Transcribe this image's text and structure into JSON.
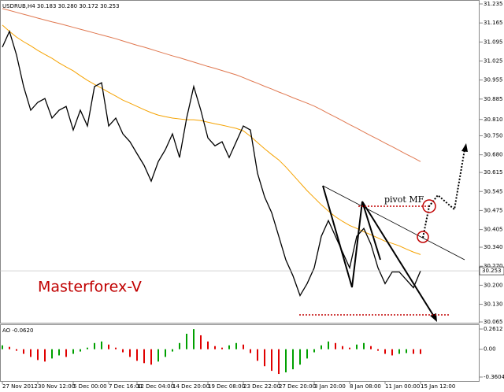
{
  "chart_data": [
    {
      "type": "line",
      "title": "USDRUB,H4 30.183 30.280 30.172 30.253",
      "annotations": [
        "Masterforex-V",
        "pivot MF"
      ],
      "last_price": 30.253,
      "categories": [
        "27 Nov 2012",
        null,
        null,
        null,
        null,
        "30 Nov 12:00",
        null,
        null,
        null,
        null,
        "5 Dec 00:00",
        null,
        null,
        null,
        null,
        "7 Dec 16:00",
        null,
        null,
        null,
        "12 Dec 04:00",
        null,
        null,
        null,
        null,
        "14 Dec 20:00",
        null,
        null,
        null,
        null,
        "19 Dec 08:00",
        null,
        null,
        null,
        null,
        "23 Dec 22:00",
        null,
        null,
        null,
        null,
        "27 Dec 20:00",
        null,
        null,
        null,
        null,
        "3 Jan 20:00",
        null,
        null,
        null,
        null,
        "8 Jan 08:00",
        null,
        null,
        null,
        null,
        "11 Jan 00:00",
        null,
        null,
        null,
        null,
        "15 Jan 12:00"
      ],
      "series": [
        {
          "color": "#000000",
          "values": [
            31.076,
            31.134,
            31.047,
            30.931,
            30.844,
            30.873,
            30.887,
            30.815,
            30.844,
            30.858,
            30.771,
            30.844,
            30.786,
            30.931,
            30.945,
            30.786,
            30.815,
            30.757,
            30.728,
            30.684,
            30.641,
            30.583,
            30.655,
            30.699,
            30.757,
            30.67,
            30.815,
            30.931,
            30.844,
            30.742,
            30.713,
            30.728,
            30.67,
            30.728,
            30.786,
            30.771,
            30.612,
            30.525,
            30.467,
            30.38,
            30.293,
            30.235,
            30.162,
            30.206,
            30.264,
            30.38,
            30.438,
            30.38,
            30.322,
            30.264,
            30.38,
            30.409,
            30.351,
            30.264,
            30.206,
            30.249,
            30.249,
            30.22,
            30.191,
            30.253
          ]
        },
        {
          "color": "#f5a200",
          "values": [
            31.157,
            31.134,
            31.113,
            31.096,
            31.081,
            31.064,
            31.049,
            31.035,
            31.018,
            31.003,
            30.989,
            30.971,
            30.954,
            30.939,
            30.925,
            30.91,
            30.896,
            30.881,
            30.87,
            30.858,
            30.846,
            30.835,
            30.826,
            30.82,
            30.815,
            30.812,
            30.809,
            30.809,
            30.806,
            30.8,
            30.794,
            30.789,
            30.783,
            30.777,
            30.768,
            30.748,
            30.725,
            30.702,
            30.681,
            30.661,
            30.635,
            30.606,
            30.577,
            30.548,
            30.522,
            30.496,
            30.473,
            30.452,
            30.435,
            30.42,
            30.409,
            30.397,
            30.386,
            30.374,
            30.362,
            30.354,
            30.345,
            30.333,
            30.322,
            30.313
          ]
        },
        {
          "color": "#e07850",
          "values": [
            31.218,
            31.211,
            31.204,
            31.197,
            31.19,
            31.183,
            31.176,
            31.169,
            31.163,
            31.156,
            31.149,
            31.142,
            31.135,
            31.128,
            31.121,
            31.114,
            31.107,
            31.099,
            31.091,
            31.083,
            31.076,
            31.068,
            31.06,
            31.052,
            31.044,
            31.037,
            31.029,
            31.021,
            31.013,
            31.005,
            30.998,
            30.99,
            30.982,
            30.974,
            30.964,
            30.953,
            30.943,
            30.932,
            30.922,
            30.911,
            30.901,
            30.89,
            30.88,
            30.87,
            30.859,
            30.846,
            30.832,
            30.819,
            30.805,
            30.791,
            30.778,
            30.764,
            30.75,
            30.737,
            30.723,
            30.71,
            30.696,
            30.682,
            30.669,
            30.655
          ]
        }
      ],
      "ylim": [
        30.065,
        31.235
      ],
      "yticks": [
        31.235,
        31.165,
        31.095,
        31.025,
        30.955,
        30.885,
        {
          "value": 30.81,
          "label": "30.810"
        },
        {
          "value": 30.75,
          "label": "30.750"
        },
        {
          "value": 30.68,
          "label": "30.680"
        },
        30.615,
        30.545,
        30.475,
        30.405,
        {
          "value": 30.34,
          "label": "30.340"
        },
        {
          "value": 30.27,
          "label": "30.270"
        },
        {
          "value": 30.2,
          "label": "30.200"
        },
        {
          "value": 30.13,
          "label": "30.130"
        },
        30.065
      ]
    },
    {
      "type": "bar",
      "title": "AO -0.0620",
      "up_color": "#00a000",
      "down_color": "#e00000",
      "values": [
        0.05,
        0.03,
        -0.02,
        -0.06,
        -0.1,
        -0.14,
        -0.16,
        -0.12,
        -0.08,
        -0.1,
        -0.06,
        -0.03,
        0.02,
        0.08,
        0.1,
        0.06,
        0.02,
        -0.04,
        -0.1,
        -0.15,
        -0.18,
        -0.2,
        -0.16,
        -0.1,
        -0.03,
        0.08,
        0.2,
        0.26,
        0.18,
        0.1,
        0.04,
        0.02,
        0.05,
        0.08,
        0.06,
        -0.05,
        -0.15,
        -0.22,
        -0.28,
        -0.32,
        -0.3,
        -0.26,
        -0.2,
        -0.12,
        -0.04,
        0.05,
        0.1,
        0.08,
        0.04,
        0.02,
        0.06,
        0.08,
        0.04,
        -0.02,
        -0.06,
        -0.08,
        -0.06,
        -0.05,
        -0.06,
        -0.062
      ],
      "ylim": [
        -0.3604,
        0.2612
      ],
      "yticks": [
        0.2612,
        {
          "value": 0,
          "label": "0.00"
        },
        -0.3604
      ]
    }
  ]
}
